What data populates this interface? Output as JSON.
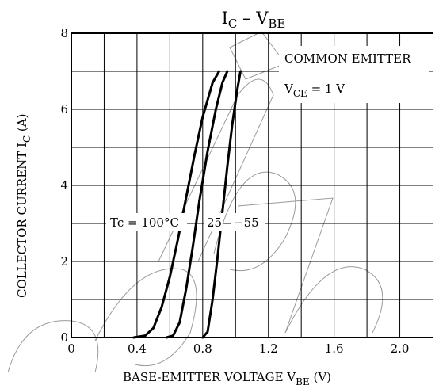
{
  "chart_data": {
    "type": "line",
    "title": {
      "main": "I",
      "sub1": "C",
      "mid": " – V",
      "sub2": "BE"
    },
    "xlabel": {
      "main": "BASE-EMITTER VOLTAGE   V",
      "sub": "BE",
      "unit": "   (V)"
    },
    "ylabel": {
      "main": "COLLECTOR CURRENT   I",
      "sub": "C",
      "unit": "   (A)"
    },
    "xlim": [
      0,
      2.2
    ],
    "ylim": [
      0,
      8
    ],
    "x_ticks": [
      {
        "v": 0,
        "label": "0"
      },
      {
        "v": 0.4,
        "label": "0.4"
      },
      {
        "v": 0.8,
        "label": "0.8"
      },
      {
        "v": 1.2,
        "label": "1.2"
      },
      {
        "v": 1.6,
        "label": "1.6"
      },
      {
        "v": 2.0,
        "label": "2.0"
      }
    ],
    "y_ticks": [
      {
        "v": 0,
        "label": "0"
      },
      {
        "v": 2,
        "label": "2"
      },
      {
        "v": 4,
        "label": "4"
      },
      {
        "v": 6,
        "label": "6"
      },
      {
        "v": 8,
        "label": "8"
      }
    ],
    "grid": true,
    "annotations": {
      "condition_line1": "COMMON EMITTER",
      "condition_line2": {
        "main": "V",
        "sub": "CE",
        "rest": " = 1 V"
      },
      "series_label_1": "Tc = 100°C",
      "series_label_2": "25",
      "series_label_3": "−55"
    },
    "series": [
      {
        "name": "100",
        "points": [
          [
            0.38,
            0
          ],
          [
            0.45,
            0.05
          ],
          [
            0.5,
            0.25
          ],
          [
            0.55,
            0.8
          ],
          [
            0.6,
            1.6
          ],
          [
            0.65,
            2.6
          ],
          [
            0.7,
            3.7
          ],
          [
            0.75,
            4.8
          ],
          [
            0.8,
            5.8
          ],
          [
            0.86,
            6.7
          ],
          [
            0.9,
            7.0
          ]
        ]
      },
      {
        "name": "25",
        "points": [
          [
            0.58,
            0
          ],
          [
            0.62,
            0.05
          ],
          [
            0.66,
            0.4
          ],
          [
            0.7,
            1.3
          ],
          [
            0.74,
            2.4
          ],
          [
            0.78,
            3.6
          ],
          [
            0.83,
            4.9
          ],
          [
            0.88,
            6.0
          ],
          [
            0.92,
            6.7
          ],
          [
            0.95,
            7.0
          ]
        ]
      },
      {
        "name": "-55",
        "points": [
          [
            0.8,
            0
          ],
          [
            0.83,
            0.15
          ],
          [
            0.86,
            1.0
          ],
          [
            0.89,
            2.1
          ],
          [
            0.92,
            3.3
          ],
          [
            0.95,
            4.5
          ],
          [
            0.98,
            5.6
          ],
          [
            1.01,
            6.5
          ],
          [
            1.03,
            7.0
          ]
        ]
      }
    ]
  }
}
